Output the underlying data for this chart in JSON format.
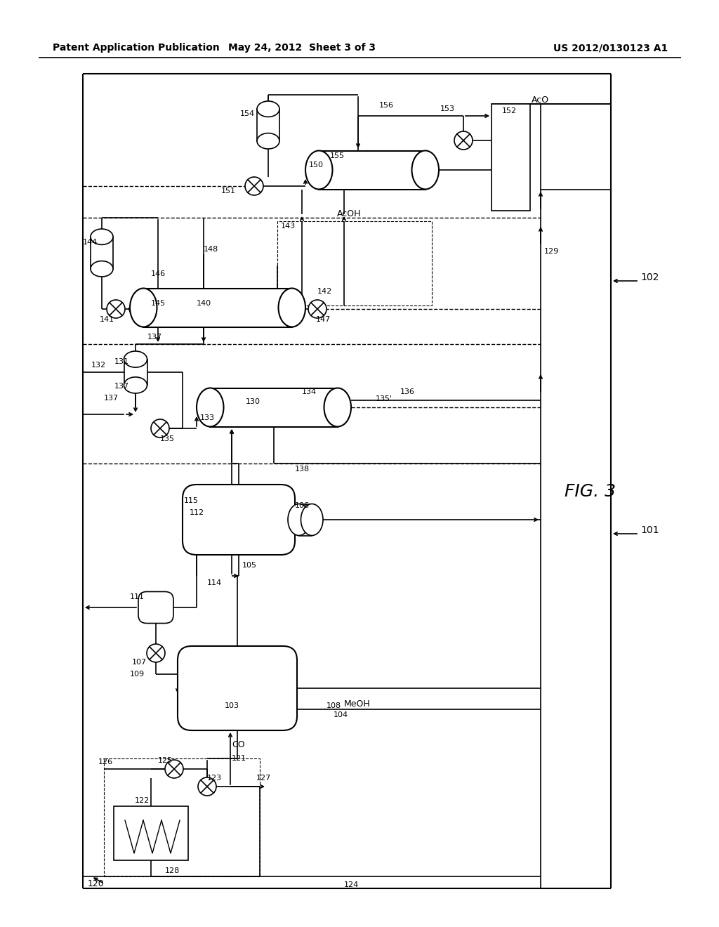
{
  "bg_color": "#ffffff",
  "line_color": "#000000",
  "header_left": "Patent Application Publication",
  "header_mid": "May 24, 2012  Sheet 3 of 3",
  "header_right": "US 2012/0130123 A1"
}
